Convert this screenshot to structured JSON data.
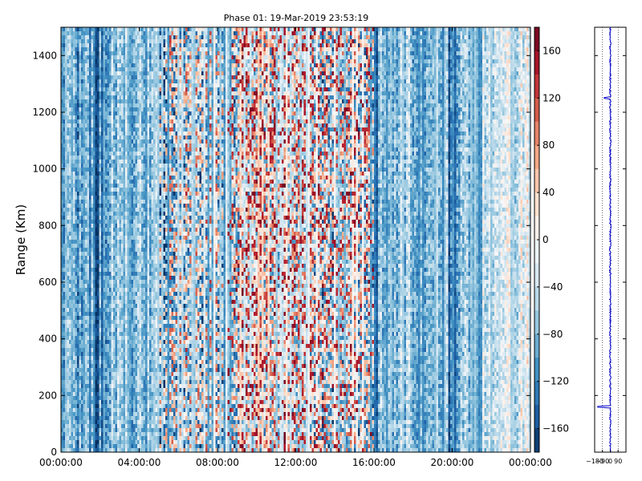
{
  "chart_data": [
    {
      "type": "heatmap",
      "title": "Phase 01: 19-Mar-2019 23:53:19",
      "xlabel": "",
      "ylabel": "Range (Km)",
      "x_tick_labels": [
        "00:00:00",
        "04:00:00",
        "08:00:00",
        "12:00:00",
        "16:00:00",
        "20:00:00",
        "00:00:00"
      ],
      "x_range_hours": [
        0,
        24
      ],
      "y_tick_labels": [
        "0",
        "200",
        "400",
        "600",
        "800",
        "1000",
        "1200",
        "1400"
      ],
      "y_ticks": [
        0,
        200,
        400,
        600,
        800,
        1000,
        1200,
        1400
      ],
      "ylim": [
        0,
        1500
      ],
      "colormap": "RdBu_r",
      "colorbar": {
        "range": [
          -180,
          180
        ],
        "tick_values": [
          -160,
          -120,
          -80,
          -40,
          0,
          40,
          80,
          120,
          160
        ],
        "tick_labels": [
          "−160",
          "−120",
          "−80",
          "−40",
          "0",
          "40",
          "80",
          "120",
          "160"
        ]
      },
      "column_mean_phase_profile": [
        {
          "hours_start": 0,
          "hours_end": 2.5,
          "phase": -95
        },
        {
          "hours_start": 2.5,
          "hours_end": 5.5,
          "phase": -70
        },
        {
          "hours_start": 5.5,
          "hours_end": 9,
          "phase": -20
        },
        {
          "hours_start": 9,
          "hours_end": 12.5,
          "phase": 25
        },
        {
          "hours_start": 12.5,
          "hours_end": 16,
          "phase": -10
        },
        {
          "hours_start": 16,
          "hours_end": 21.5,
          "phase": -70
        },
        {
          "hours_start": 21.5,
          "hours_end": 24,
          "phase": -25
        }
      ]
    },
    {
      "type": "line",
      "title": "",
      "xlabel": "",
      "ylabel": "",
      "x_tick_labels": [
        "−180",
        "−90",
        "0",
        "90"
      ],
      "x_ticks": [
        -180,
        -90,
        0,
        90
      ],
      "xlim": [
        -180,
        180
      ],
      "ylim": [
        0,
        1500
      ],
      "grid": "vertical dotted",
      "series_color": "#0000cc",
      "mean_phase": 0,
      "spikes": [
        {
          "range_km": 160,
          "phase": -145
        },
        {
          "range_km": 1250,
          "phase": -70
        }
      ]
    }
  ]
}
